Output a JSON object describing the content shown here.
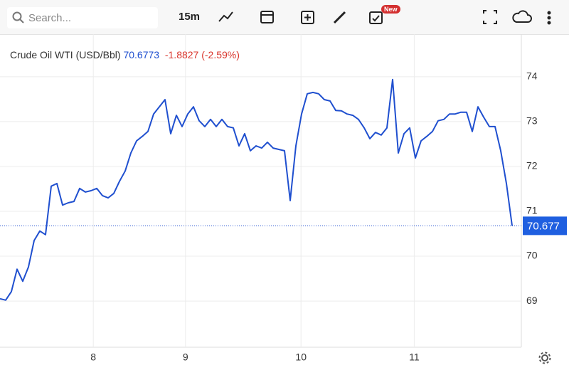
{
  "toolbar": {
    "search_placeholder": "Search...",
    "interval": "15m",
    "badge": "New"
  },
  "chart_data": {
    "type": "line",
    "title": "Crude Oil WTI (USD/Bbl)",
    "last": "70.6773",
    "change": "-1.8827 (-2.59%)",
    "series": [
      {
        "name": "Crude Oil WTI",
        "color": "#1f4fcf",
        "values": [
          69.05,
          69.02,
          69.21,
          69.71,
          69.44,
          69.76,
          70.35,
          70.56,
          70.48,
          71.56,
          71.62,
          71.14,
          71.19,
          71.22,
          71.51,
          71.43,
          71.46,
          71.51,
          71.35,
          71.3,
          71.4,
          71.67,
          71.9,
          72.3,
          72.57,
          72.67,
          72.78,
          73.17,
          73.33,
          73.49,
          72.73,
          73.14,
          72.89,
          73.17,
          73.33,
          73.02,
          72.89,
          73.05,
          72.89,
          73.05,
          72.89,
          72.86,
          72.46,
          72.73,
          72.35,
          72.46,
          72.41,
          72.54,
          72.41,
          72.38,
          72.35,
          71.24,
          72.46,
          73.17,
          73.62,
          73.65,
          73.62,
          73.49,
          73.46,
          73.25,
          73.24,
          73.17,
          73.14,
          73.05,
          72.86,
          72.62,
          72.76,
          72.7,
          72.86,
          73.94,
          72.3,
          72.73,
          72.86,
          72.19,
          72.57,
          72.67,
          72.78,
          73.02,
          73.05,
          73.17,
          73.17,
          73.21,
          73.21,
          72.78,
          73.33,
          73.1,
          72.89,
          72.89,
          72.35,
          71.62,
          70.6773
        ]
      }
    ],
    "last_price": {
      "value": 70.677,
      "label": "70.677"
    },
    "xlim": [
      0,
      91.625
    ],
    "xticks": [
      {
        "value": 16.4,
        "label": "8"
      },
      {
        "value": 32.6,
        "label": "9"
      },
      {
        "value": 52.9,
        "label": "10"
      },
      {
        "value": 72.8,
        "label": "11"
      }
    ],
    "ylim": [
      67.97,
      74.95
    ],
    "yticks": [
      69,
      70,
      71,
      72,
      73,
      74
    ],
    "grid": true
  }
}
